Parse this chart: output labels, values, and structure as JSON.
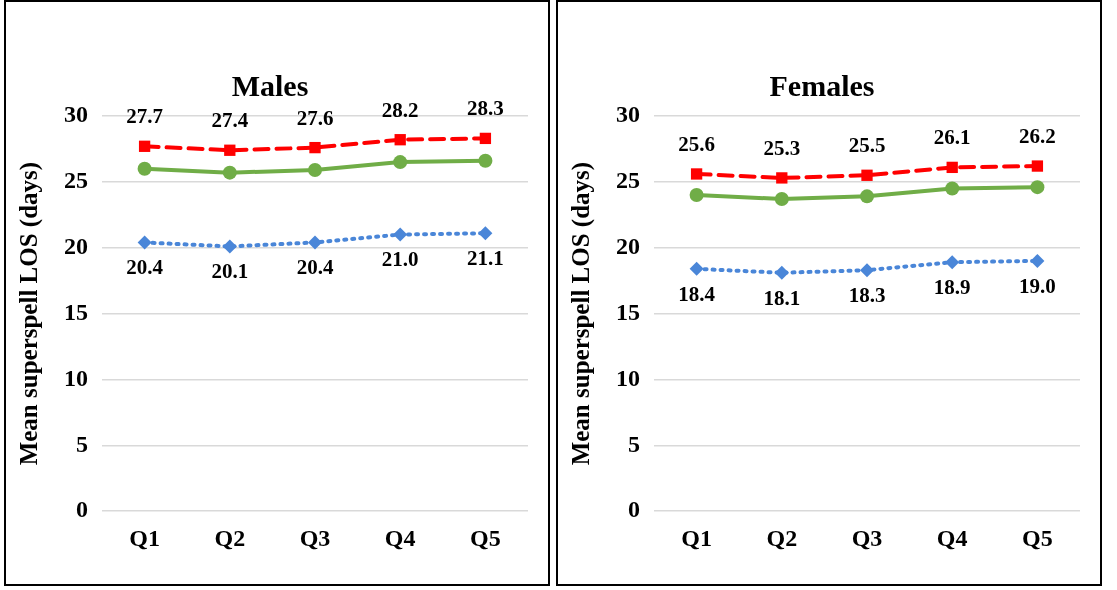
{
  "chart_data": [
    {
      "type": "line",
      "title": "Males",
      "ylabel": "Mean superspell LOS (days)",
      "categories": [
        "Q1",
        "Q2",
        "Q3",
        "Q4",
        "Q5"
      ],
      "ylim": [
        0,
        30
      ],
      "yticks": [
        0,
        5,
        10,
        15,
        20,
        25,
        30
      ],
      "grid": "y",
      "legend": false,
      "series": [
        {
          "color": "#ff0000",
          "marker": "square",
          "line_style": "dashed",
          "values": [
            27.7,
            27.4,
            27.6,
            28.2,
            28.3
          ],
          "value_labels": [
            "27.7",
            "27.4",
            "27.6",
            "28.2",
            "28.3"
          ]
        },
        {
          "color": "#70ad47",
          "marker": "circle",
          "line_style": "solid",
          "values": [
            26.0,
            25.7,
            25.9,
            26.5,
            26.6
          ]
        },
        {
          "color": "#4a86d8",
          "marker": "diamond",
          "line_style": "dotted",
          "values": [
            20.4,
            20.1,
            20.4,
            21.0,
            21.1
          ],
          "value_labels": [
            "20.4",
            "20.1",
            "20.4",
            "21.0",
            "21.1"
          ]
        }
      ]
    },
    {
      "type": "line",
      "title": "Females",
      "ylabel": "Mean superspell LOS (days)",
      "categories": [
        "Q1",
        "Q2",
        "Q3",
        "Q4",
        "Q5"
      ],
      "ylim": [
        0,
        30
      ],
      "yticks": [
        0,
        5,
        10,
        15,
        20,
        25,
        30
      ],
      "grid": "y",
      "legend": false,
      "series": [
        {
          "color": "#ff0000",
          "marker": "square",
          "line_style": "dashed",
          "values": [
            25.6,
            25.3,
            25.5,
            26.1,
            26.2
          ],
          "value_labels": [
            "25.6",
            "25.3",
            "25.5",
            "26.1",
            "26.2"
          ]
        },
        {
          "color": "#70ad47",
          "marker": "circle",
          "line_style": "solid",
          "values": [
            24.0,
            23.7,
            23.9,
            24.5,
            24.6
          ]
        },
        {
          "color": "#4a86d8",
          "marker": "diamond",
          "line_style": "dotted",
          "values": [
            18.4,
            18.1,
            18.3,
            18.9,
            19.0
          ],
          "value_labels": [
            "18.4",
            "18.1",
            "18.3",
            "18.9",
            "19.0"
          ]
        }
      ]
    }
  ]
}
